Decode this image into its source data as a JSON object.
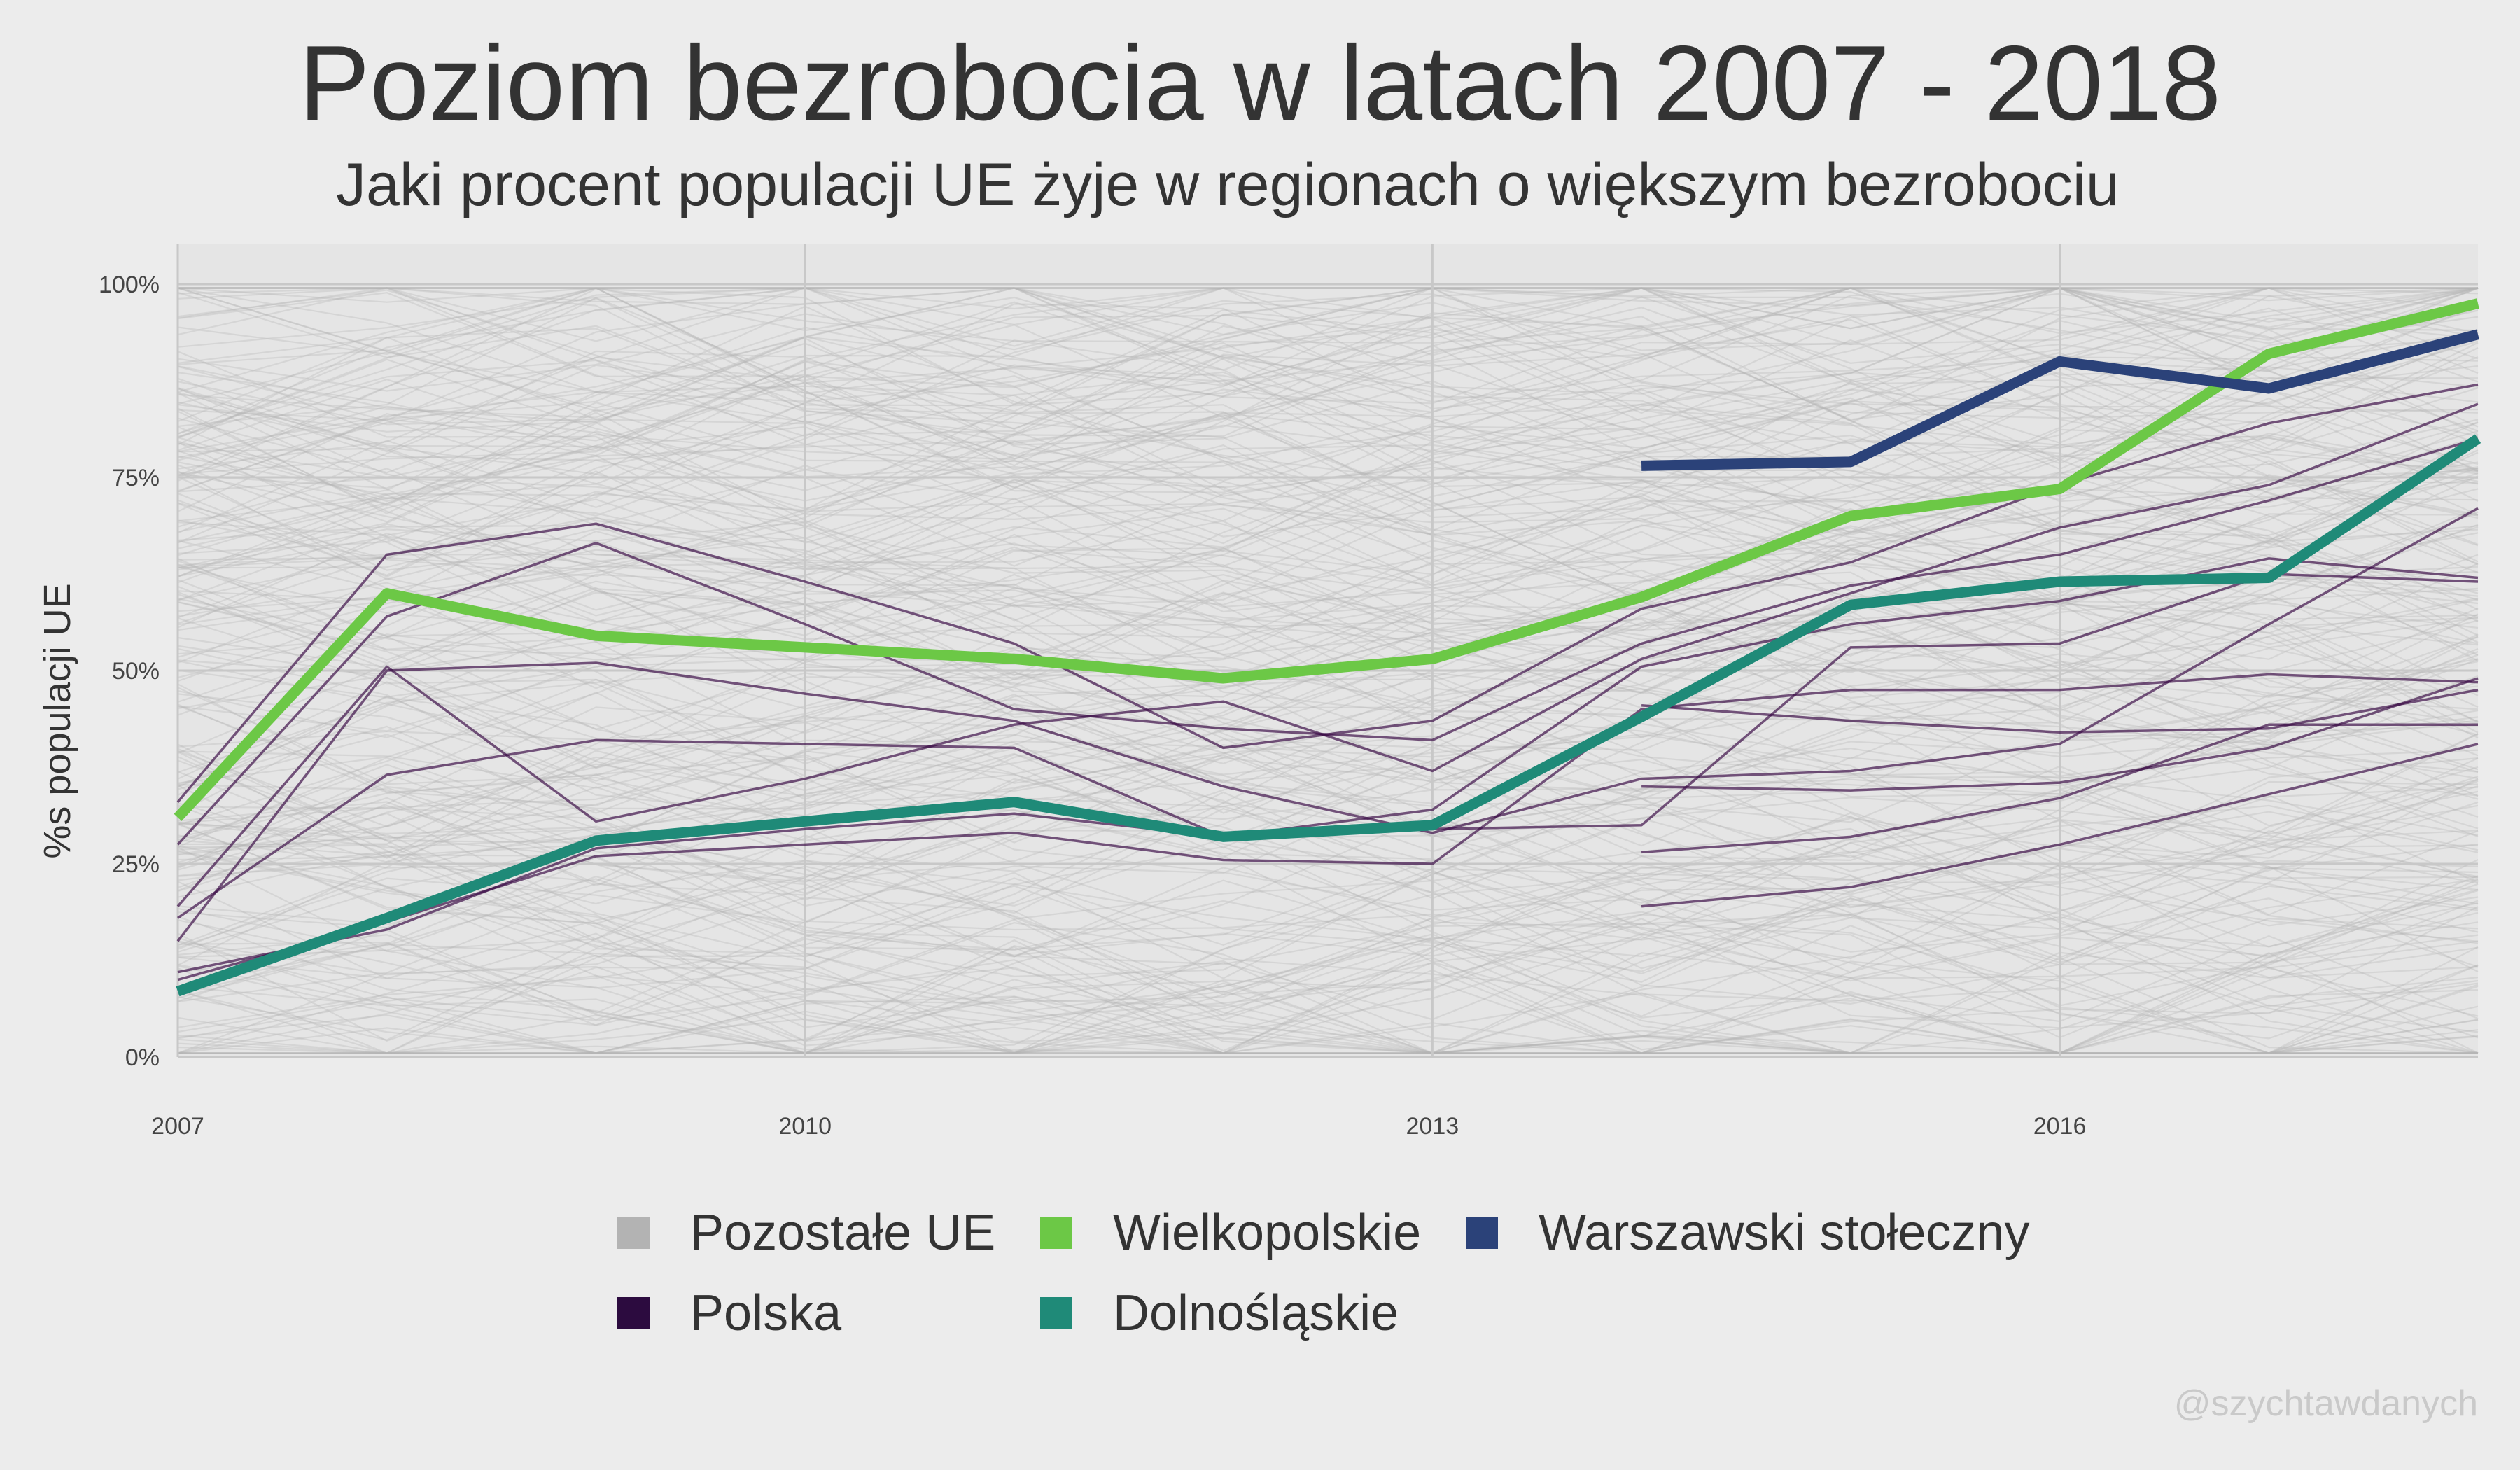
{
  "chart_data": {
    "type": "line",
    "title": "Poziom bezrobocia w latach 2007 - 2018",
    "subtitle": "Jaki procent populacji UE żyje w regionach o większym bezrobociu",
    "ylabel": "%s populacji UE",
    "xlabel": "",
    "x": [
      2007,
      2008,
      2009,
      2010,
      2011,
      2012,
      2013,
      2014,
      2015,
      2016,
      2017,
      2018
    ],
    "xlim": [
      2007,
      2018
    ],
    "ylim": [
      0,
      100
    ],
    "x_ticks": [
      "2007",
      "2010",
      "2013",
      "2016"
    ],
    "y_ticks": [
      "0%",
      "25%",
      "50%",
      "75%",
      "100%"
    ],
    "grid": true,
    "legend_position": "bottom",
    "series": [
      {
        "name": "Wielkopolskie",
        "color": "#6cc846",
        "values": [
          31,
          60,
          54.5,
          53,
          51.5,
          49,
          51.5,
          59.5,
          70,
          73.5,
          91,
          97.5
        ]
      },
      {
        "name": "Dolnośląskie",
        "color": "#1f8a78",
        "values": [
          8.5,
          18,
          28,
          30.5,
          33,
          28.5,
          30,
          44,
          58.5,
          61.5,
          62,
          80
        ]
      },
      {
        "name": "Warszawski stołeczny",
        "color": "#2b4279",
        "values": [
          null,
          null,
          null,
          null,
          null,
          null,
          null,
          76.5,
          77,
          90,
          86.5,
          93.5
        ]
      }
    ],
    "polska_regions": {
      "name": "Polska",
      "color": "#3a0b45",
      "lines": [
        [
          33,
          65,
          69,
          61.5,
          53.5,
          40,
          43.5,
          58,
          64,
          74,
          82,
          87
        ],
        [
          19.5,
          50.5,
          30.5,
          36,
          43,
          46,
          37,
          51.5,
          60,
          68.5,
          74,
          84.5
        ],
        [
          27.5,
          57,
          66.5,
          56,
          45,
          42.5,
          41,
          53.5,
          61,
          65,
          72,
          80
        ],
        [
          18,
          36.5,
          41,
          40.5,
          40,
          28.5,
          32,
          50.5,
          56,
          59,
          64.5,
          62
        ],
        [
          15,
          50,
          51,
          47,
          43.5,
          35,
          29,
          36,
          37,
          40.5,
          56,
          71
        ],
        [
          11,
          16.5,
          27,
          29.5,
          31.5,
          28.5,
          29.5,
          30,
          53,
          53.5,
          62.5,
          61.5
        ],
        [
          10,
          17.5,
          26,
          27.5,
          29,
          25.5,
          25,
          45,
          47.5,
          47.5,
          49.5,
          48.5
        ],
        [
          null,
          null,
          null,
          null,
          null,
          null,
          null,
          35,
          34.5,
          35.5,
          40,
          49
        ],
        [
          null,
          null,
          null,
          null,
          null,
          null,
          null,
          45.5,
          43.5,
          42,
          42.5,
          47.5
        ],
        [
          null,
          null,
          null,
          null,
          null,
          null,
          null,
          26.5,
          28.5,
          33.5,
          43,
          43
        ],
        [
          null,
          null,
          null,
          null,
          null,
          null,
          null,
          19.5,
          22,
          27.5,
          34,
          40.5
        ]
      ]
    },
    "background_series": {
      "name": "Pozostałe UE",
      "color": "#b3b3b3"
    }
  },
  "legend": {
    "items": [
      {
        "label": "Pozostałe UE",
        "color": "#b3b3b3"
      },
      {
        "label": "Wielkopolskie",
        "color": "#6cc846"
      },
      {
        "label": "Warszawski stołeczny",
        "color": "#2b4279"
      },
      {
        "label": "Polska",
        "color": "#2c0b3f"
      },
      {
        "label": "Dolnośląskie",
        "color": "#1f8a78"
      }
    ]
  },
  "credit": "@szychtawdanych"
}
